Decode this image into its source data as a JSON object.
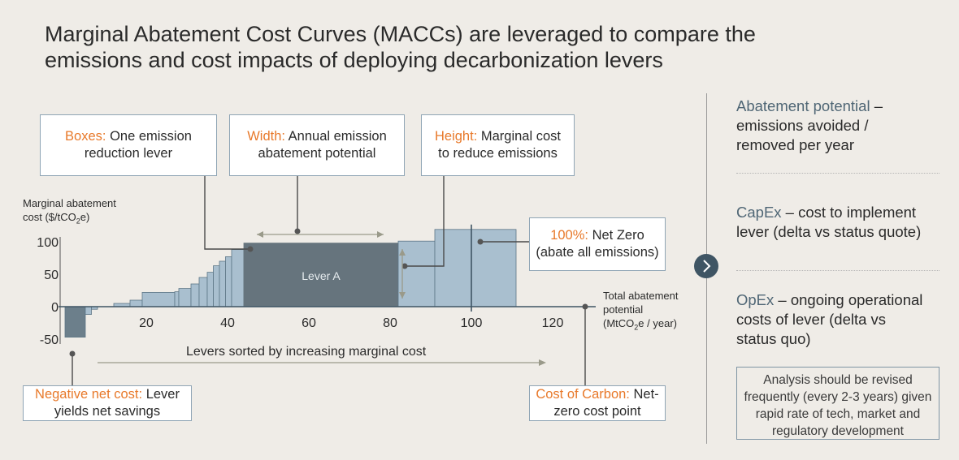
{
  "title": {
    "line1": "Marginal Abatement Cost Curves (MACCs) are leveraged to compare the",
    "line2": "emissions and cost impacts of deploying decarbonization levers"
  },
  "callouts": {
    "boxes": {
      "label": "Boxes:",
      "text1": " One emission",
      "text2": "reduction lever"
    },
    "width": {
      "label": "Width:",
      "text1": " Annual emission",
      "text2": "abatement potential"
    },
    "height": {
      "label": "Height:",
      "text1": " Marginal cost",
      "text2": "to reduce emissions"
    },
    "net_zero": {
      "label": "100%:",
      "text1": " Net Zero",
      "text2": "(abate all emissions)"
    },
    "negative": {
      "label": "Negative net cost:",
      "text1": " Lever",
      "text2": "yields net savings"
    },
    "carbon": {
      "label": "Cost of Carbon:",
      "text1": " Net-",
      "text2": "zero cost point"
    }
  },
  "sorted_label": "Levers sorted by increasing marginal cost",
  "chart_data": {
    "type": "bar",
    "ylabel_line1": "Marginal abatement",
    "ylabel_line2": "cost ($/tCO",
    "ylabel_sub": "2",
    "ylabel_end": "e)",
    "xlabel_line1": "Total abatement",
    "xlabel_line2": "potential",
    "xlabel_line3_a": "(MtCO",
    "xlabel_line3_sub": "2",
    "xlabel_line3_b": "e / year)",
    "xlim": [
      -1,
      130
    ],
    "ylim": [
      -50,
      100
    ],
    "x_ticks": [
      20,
      40,
      60,
      80,
      100,
      120
    ],
    "y_ticks": [
      100,
      50,
      0,
      -50
    ],
    "levers": [
      {
        "x0": 0,
        "x1": 5,
        "y": -47
      },
      {
        "x0": 5,
        "x1": 6.5,
        "y": -12
      },
      {
        "x0": 6.5,
        "x1": 8,
        "y": -4
      },
      {
        "x0": 12,
        "x1": 16,
        "y": 5
      },
      {
        "x0": 16,
        "x1": 19,
        "y": 10
      },
      {
        "x0": 19,
        "x1": 27,
        "y": 22
      },
      {
        "x0": 27,
        "x1": 28,
        "y": 23
      },
      {
        "x0": 28,
        "x1": 31,
        "y": 28
      },
      {
        "x0": 31,
        "x1": 33,
        "y": 35
      },
      {
        "x0": 33,
        "x1": 35,
        "y": 45
      },
      {
        "x0": 35,
        "x1": 36.5,
        "y": 53
      },
      {
        "x0": 36.5,
        "x1": 38,
        "y": 63
      },
      {
        "x0": 38,
        "x1": 39.5,
        "y": 70
      },
      {
        "x0": 39.5,
        "x1": 41,
        "y": 77
      },
      {
        "x0": 41,
        "x1": 44,
        "y": 88
      },
      {
        "x0": 44,
        "x1": 82,
        "y": 98,
        "label": "Lever A",
        "highlight": true
      },
      {
        "x0": 82,
        "x1": 91,
        "y": 101
      },
      {
        "x0": 91,
        "x1": 111,
        "y": 119
      }
    ],
    "net_zero_x": 100,
    "cost_of_carbon_x": 127
  },
  "right_panel": {
    "item1": {
      "head": "Abatement potential",
      "dash": " –",
      "line2": "emissions avoided /",
      "line3": "removed per year"
    },
    "item2": {
      "head": "CapEx",
      "dash": " – cost to implement",
      "line2": "lever (delta vs status quote)"
    },
    "item3": {
      "head": "OpEx",
      "dash": " – ongoing operational",
      "line2": "costs of lever (delta vs",
      "line3": "status quo)"
    },
    "note": "Analysis should be revised frequently (every 2-3 years) given rapid rate of tech, market and regulatory development"
  },
  "colors": {
    "lever_fill": "#a9bfcf",
    "lever_stroke": "#5d7686",
    "lever_negative": "#6c7f8b",
    "lever_highlight": "#66747d",
    "accent": "#e8792a",
    "axis": "#3f5564"
  }
}
